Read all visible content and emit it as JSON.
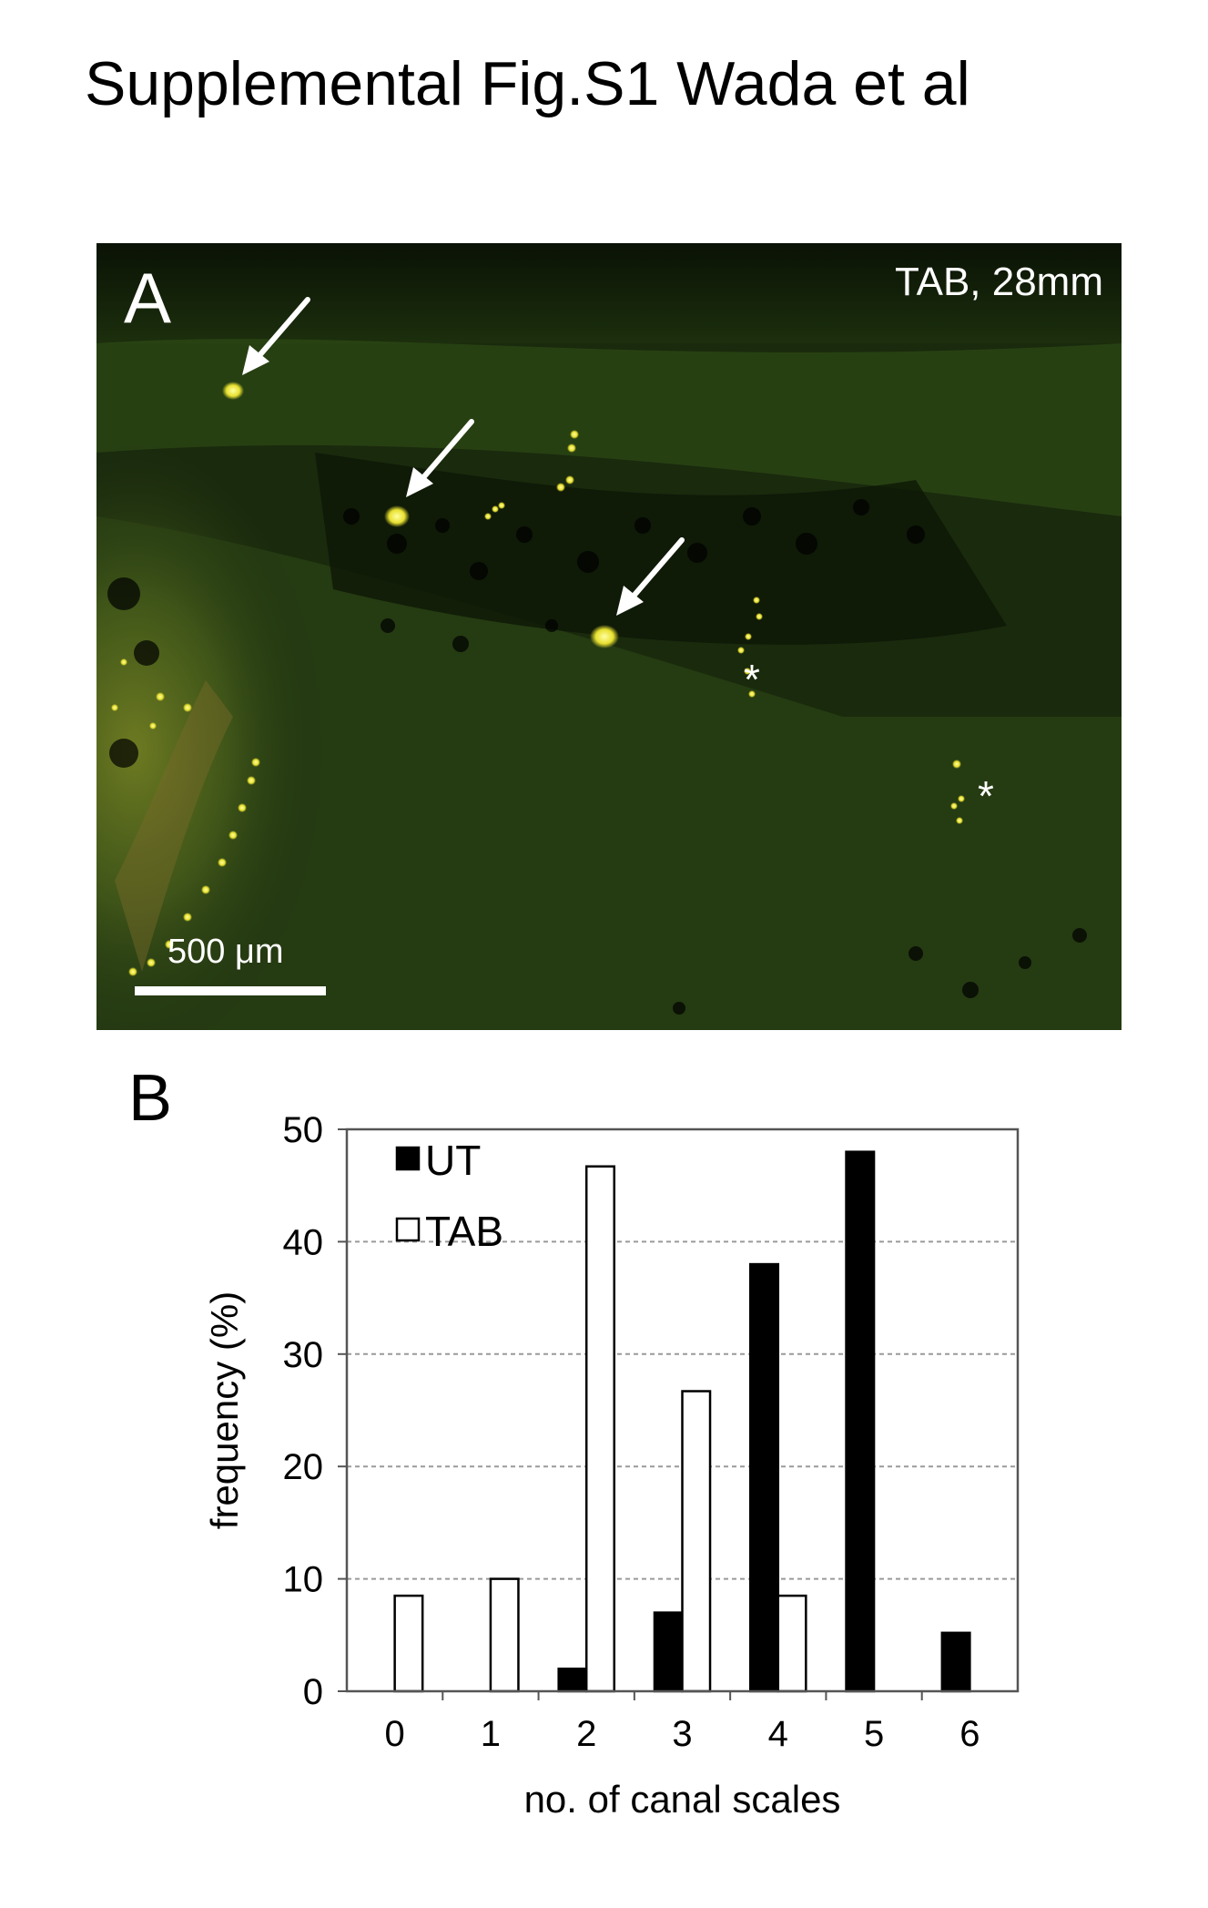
{
  "figure_title": "Supplemental Fig.S1 Wada et al",
  "panel_a": {
    "letter": "A",
    "condition_label": "TAB, 28mm",
    "scale_bar_label": "500 μm",
    "asterisk": "*",
    "colors": {
      "background": "#1b2a0e",
      "fluorescence_green": "#3d5a1c",
      "signal_yellow": "#f5f04a",
      "annotation": "#ffffff"
    },
    "icons": [
      "arrow-icon",
      "asterisk-marker"
    ]
  },
  "panel_b": {
    "letter": "B"
  },
  "chart_data": {
    "type": "bar",
    "title": "",
    "xlabel": "no. of canal scales",
    "ylabel": "frequency (%)",
    "categories": [
      "0",
      "1",
      "2",
      "3",
      "4",
      "5",
      "6"
    ],
    "ylim": [
      0,
      50
    ],
    "yticks": [
      "0",
      "10",
      "20",
      "30",
      "40",
      "50"
    ],
    "grid": true,
    "legend_position": "top-left",
    "series": [
      {
        "name": "UT",
        "fill": "#000000",
        "values": [
          0,
          0,
          2,
          7,
          38,
          48,
          5.2
        ]
      },
      {
        "name": "TAB",
        "fill": "#ffffff",
        "values": [
          8.5,
          10,
          46.7,
          26.7,
          8.5,
          0,
          0
        ]
      }
    ]
  }
}
